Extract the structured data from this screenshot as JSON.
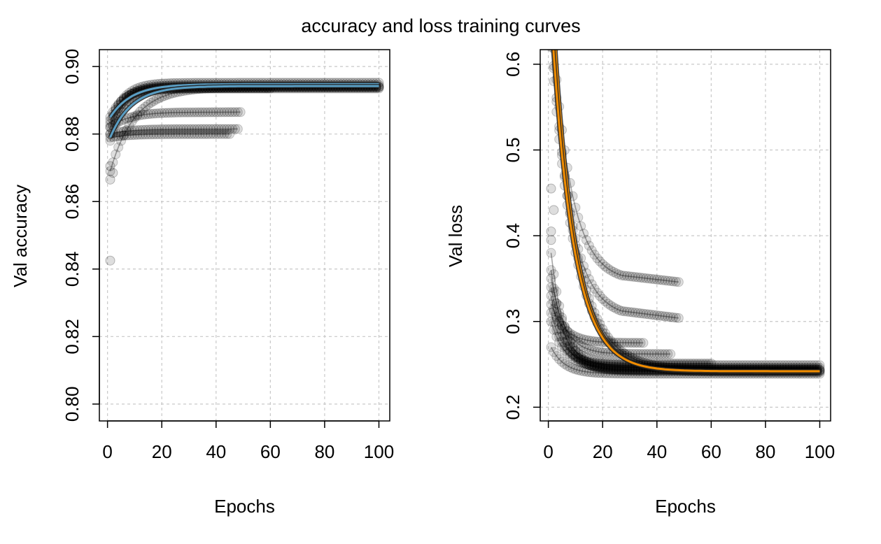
{
  "figure": {
    "title": "accuracy and loss training curves"
  },
  "chart_data": [
    {
      "type": "scatter",
      "panel": "left",
      "xlabel": "Epochs",
      "ylabel": "Val accuracy",
      "xlim": [
        -3,
        104
      ],
      "ylim": [
        0.795,
        0.905
      ],
      "x_ticks": [
        "0",
        "20",
        "40",
        "60",
        "80",
        "100"
      ],
      "y_ticks": [
        "0.80",
        "0.82",
        "0.84",
        "0.86",
        "0.88",
        "0.90"
      ],
      "grid": true,
      "point_color": "#000000",
      "highlight_color": "#5a9ec4",
      "series": [
        {
          "kind": "bulk",
          "epochs": [
            1,
            100
          ],
          "start": 0.884,
          "end": 0.894
        },
        {
          "kind": "bulk",
          "epochs": [
            1,
            100
          ],
          "start": 0.882,
          "end": 0.8945
        },
        {
          "kind": "bulk",
          "epochs": [
            1,
            100
          ],
          "start": 0.88,
          "end": 0.8938
        },
        {
          "kind": "bulk",
          "epochs": [
            1,
            100
          ],
          "start": 0.883,
          "end": 0.8952
        },
        {
          "kind": "bulk",
          "epochs": [
            1,
            100
          ],
          "start": 0.878,
          "end": 0.8935
        },
        {
          "kind": "bulk",
          "epochs": [
            1,
            60
          ],
          "start": 0.885,
          "end": 0.8935
        },
        {
          "kind": "slow",
          "epochs": [
            1,
            100
          ],
          "start": 0.869,
          "end": 0.894
        },
        {
          "kind": "overfit",
          "epochs": [
            1,
            48
          ],
          "start": 0.88,
          "end": 0.8815
        },
        {
          "kind": "overfit",
          "epochs": [
            1,
            45
          ],
          "start": 0.879,
          "end": 0.88
        },
        {
          "kind": "overfit",
          "epochs": [
            1,
            49
          ],
          "start": 0.882,
          "end": 0.8865
        },
        {
          "kind": "highlight",
          "epochs": [
            1,
            100
          ],
          "start": 0.885,
          "end": 0.8948
        },
        {
          "kind": "highlight",
          "epochs": [
            1,
            100
          ],
          "start": 0.879,
          "end": 0.8942
        }
      ],
      "outliers": [
        {
          "x": 1,
          "y": 0.8425
        },
        {
          "x": 1,
          "y": 0.8665
        },
        {
          "x": 1,
          "y": 0.8705
        },
        {
          "x": 2,
          "y": 0.8685
        }
      ]
    },
    {
      "type": "scatter",
      "panel": "right",
      "xlabel": "Epochs",
      "ylabel": "Val loss",
      "xlim": [
        -3,
        104
      ],
      "ylim": [
        0.184,
        0.617
      ],
      "x_ticks": [
        "0",
        "20",
        "40",
        "60",
        "80",
        "100"
      ],
      "y_ticks": [
        "0.2",
        "0.3",
        "0.4",
        "0.5",
        "0.6"
      ],
      "grid": true,
      "point_color": "#000000",
      "highlight_color": "#f08c00",
      "series": [
        {
          "kind": "bulk",
          "epochs": [
            1,
            100
          ],
          "start": 0.33,
          "end": 0.244
        },
        {
          "kind": "bulk",
          "epochs": [
            1,
            100
          ],
          "start": 0.3,
          "end": 0.246
        },
        {
          "kind": "bulk",
          "epochs": [
            1,
            100
          ],
          "start": 0.36,
          "end": 0.242
        },
        {
          "kind": "bulk",
          "epochs": [
            1,
            100
          ],
          "start": 0.27,
          "end": 0.239
        },
        {
          "kind": "bulk",
          "epochs": [
            1,
            100
          ],
          "start": 0.31,
          "end": 0.249
        },
        {
          "kind": "bulk",
          "epochs": [
            1,
            100
          ],
          "start": 0.38,
          "end": 0.243
        },
        {
          "kind": "bulk",
          "epochs": [
            1,
            60
          ],
          "start": 0.34,
          "end": 0.251
        },
        {
          "kind": "bulk",
          "epochs": [
            1,
            45
          ],
          "start": 0.35,
          "end": 0.262
        },
        {
          "kind": "bulk",
          "epochs": [
            1,
            35
          ],
          "start": 0.32,
          "end": 0.275
        },
        {
          "kind": "slow",
          "epochs": [
            1,
            100
          ],
          "start": 0.62,
          "end": 0.241
        },
        {
          "kind": "slow",
          "epochs": [
            1,
            100
          ],
          "start": 0.64,
          "end": 0.243
        },
        {
          "kind": "overfit",
          "epochs": [
            1,
            48
          ],
          "start": 0.66,
          "end": 0.346
        },
        {
          "kind": "overfit",
          "epochs": [
            1,
            48
          ],
          "start": 0.64,
          "end": 0.304
        },
        {
          "kind": "highlight",
          "epochs": [
            1,
            100
          ],
          "start": 0.7,
          "end": 0.241
        },
        {
          "kind": "highlight",
          "epochs": [
            1,
            100
          ],
          "start": 0.66,
          "end": 0.242
        }
      ],
      "outliers": [
        {
          "x": 1,
          "y": 0.455
        },
        {
          "x": 2,
          "y": 0.43
        },
        {
          "x": 1,
          "y": 0.405
        },
        {
          "x": 1,
          "y": 0.395
        }
      ]
    }
  ]
}
